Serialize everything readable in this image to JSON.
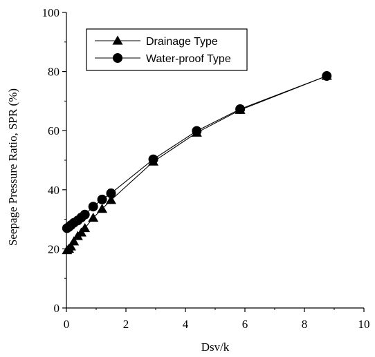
{
  "chart_data": {
    "type": "line",
    "title": "",
    "xlabel": "Dsv/k",
    "ylabel": "Seepage Pressure Ratio, SPR (%)",
    "xlim": [
      0,
      10
    ],
    "ylim": [
      0,
      100
    ],
    "xticks": [
      0,
      2,
      4,
      6,
      8,
      10
    ],
    "yticks": [
      0,
      20,
      40,
      60,
      80,
      100
    ],
    "grid": false,
    "legend_position": "top-left",
    "series": [
      {
        "name": "Drainage Type",
        "marker": "triangle",
        "x": [
          0.02,
          0.08,
          0.15,
          0.25,
          0.38,
          0.5,
          0.62,
          0.9,
          1.2,
          1.5,
          2.92,
          4.38,
          5.84,
          8.75
        ],
        "y": [
          19.5,
          20.0,
          20.8,
          22.5,
          24.3,
          25.5,
          27.0,
          30.5,
          33.5,
          36.5,
          49.5,
          59.3,
          67.0,
          78.5
        ]
      },
      {
        "name": "Water-proof Type",
        "marker": "circle",
        "x": [
          0.02,
          0.08,
          0.15,
          0.25,
          0.38,
          0.5,
          0.62,
          0.9,
          1.2,
          1.5,
          2.92,
          4.38,
          5.84,
          8.75
        ],
        "y": [
          27.0,
          27.4,
          28.0,
          28.8,
          29.6,
          30.6,
          31.6,
          34.3,
          36.7,
          38.8,
          50.3,
          59.9,
          67.3,
          78.5
        ]
      }
    ]
  }
}
